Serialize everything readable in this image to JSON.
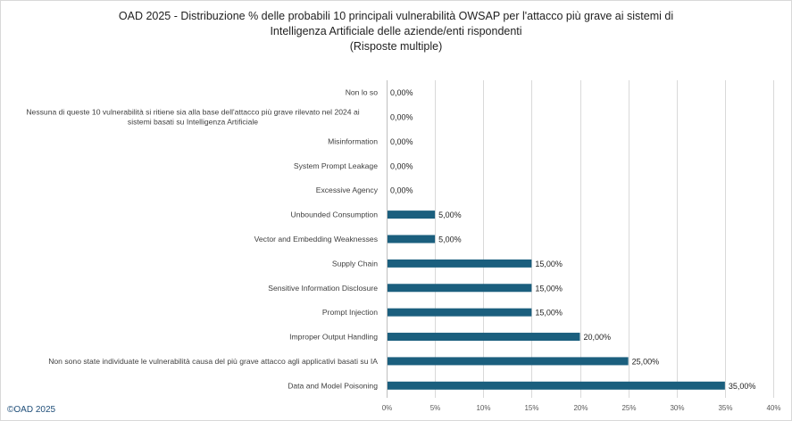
{
  "title_lines": [
    "OAD 2025 - Distribuzione %  delle probabili 10 principali vulnerabilità OWSAP per l'attacco più grave ai sistemi di",
    "Intelligenza Artificiale delle aziende/enti rispondenti",
    "(Risposte multiple)"
  ],
  "footer": "©OAD 2025",
  "colors": {
    "bar": "#1b5f7e",
    "grid": "#d9d9d9"
  },
  "chart_data": {
    "type": "bar",
    "orientation": "horizontal",
    "title": "OAD 2025 - Distribuzione %  delle probabili 10 principali vulnerabilità OWSAP per l'attacco più grave ai sistemi di Intelligenza Artificiale delle aziende/enti rispondenti (Risposte multiple)",
    "categories": [
      [
        "Non lo so"
      ],
      [
        "Nessuna di queste 10 vulnerabilità si ritiene sia alla base dell'attacco più grave rilevato nel 2024 ai",
        "sistemi basati su Intelligenza Artificiale"
      ],
      [
        "Misinformation"
      ],
      [
        "System Prompt Leakage"
      ],
      [
        "Excessive Agency"
      ],
      [
        "Unbounded Consumption"
      ],
      [
        "Vector and Embedding Weaknesses"
      ],
      [
        "Supply Chain"
      ],
      [
        "Sensitive Information Disclosure"
      ],
      [
        "Prompt Injection"
      ],
      [
        "Improper Output Handling"
      ],
      [
        "Non sono state individuate le vulnerabilità causa del più grave attacco agli applicativi basati su IA"
      ],
      [
        "Data and Model Poisoning"
      ]
    ],
    "values": [
      0,
      0,
      0,
      0,
      0,
      5,
      5,
      15,
      15,
      15,
      20,
      25,
      35
    ],
    "value_labels": [
      "0,00%",
      "0,00%",
      "0,00%",
      "0,00%",
      "0,00%",
      "5,00%",
      "5,00%",
      "15,00%",
      "15,00%",
      "15,00%",
      "20,00%",
      "25,00%",
      "35,00%"
    ],
    "xlim": [
      0,
      40
    ],
    "xticks": [
      0,
      5,
      10,
      15,
      20,
      25,
      30,
      35,
      40
    ],
    "xtick_labels": [
      "0%",
      "5%",
      "10%",
      "15%",
      "20%",
      "25%",
      "30%",
      "35%",
      "40%"
    ],
    "xlabel": "",
    "ylabel": "",
    "grid": true
  }
}
